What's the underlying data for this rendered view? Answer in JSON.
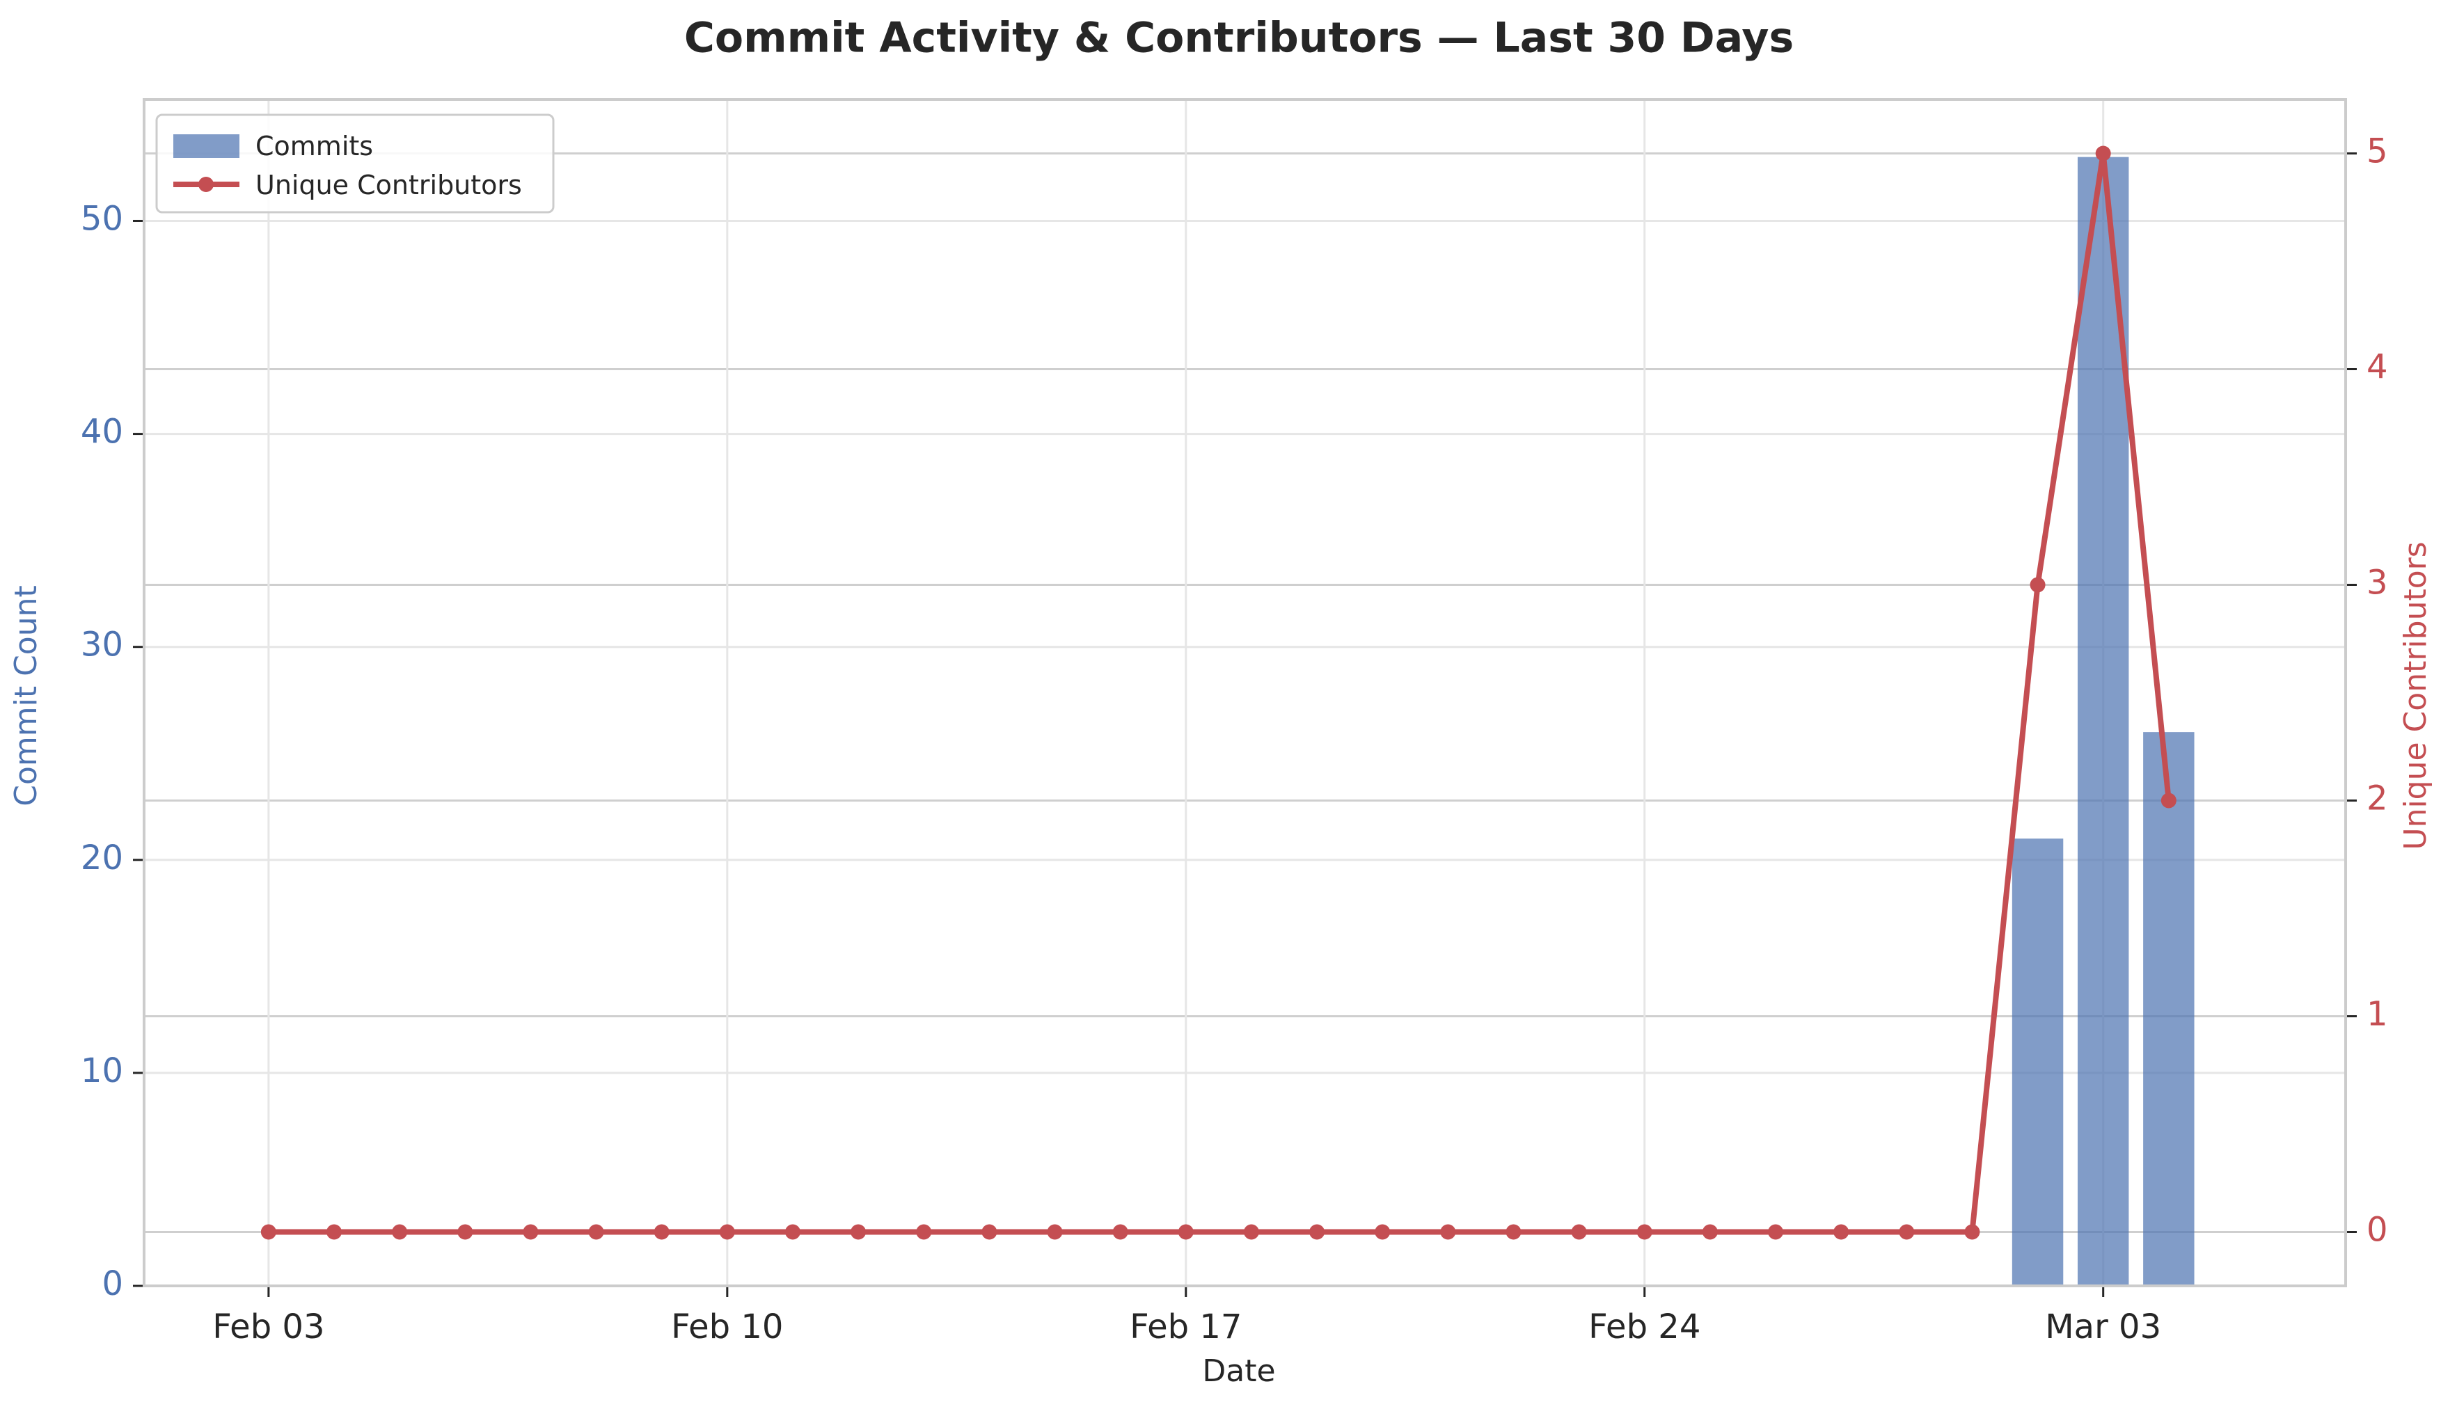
{
  "chart_data": {
    "type": "bar+line",
    "title": "Commit Activity & Contributors — Last 30 Days",
    "xlabel": "Date",
    "ylabel_left": "Commit Count",
    "ylabel_right": "Unique Contributors",
    "x_ticks": [
      "Feb 03",
      "Feb 10",
      "Feb 17",
      "Feb 24",
      "Mar 03"
    ],
    "x_start": "2025-02-03",
    "x_end": "2025-03-05",
    "ylim_left": [
      0,
      55.7
    ],
    "yticks_left": [
      0,
      10,
      20,
      30,
      40,
      50
    ],
    "ylim_right": [
      -0.25,
      5.25
    ],
    "yticks_right": [
      0,
      1,
      2,
      3,
      4,
      5
    ],
    "grid": true,
    "legend_position": "upper-left",
    "colors": {
      "commits": "#4c72b0",
      "contributors": "#c44e52",
      "grid": "#e6e6e6",
      "frame": "#cccccc",
      "text": "#262626"
    },
    "series": [
      {
        "name": "Commits",
        "kind": "bar",
        "axis": "left",
        "points": [
          {
            "date": "2025-03-02",
            "value": 21
          },
          {
            "date": "2025-03-03",
            "value": 53
          },
          {
            "date": "2025-03-04",
            "value": 26
          }
        ]
      },
      {
        "name": "Unique Contributors",
        "kind": "line",
        "axis": "right",
        "points": [
          {
            "date": "2025-02-03",
            "value": 0
          },
          {
            "date": "2025-02-04",
            "value": 0
          },
          {
            "date": "2025-02-05",
            "value": 0
          },
          {
            "date": "2025-02-06",
            "value": 0
          },
          {
            "date": "2025-02-07",
            "value": 0
          },
          {
            "date": "2025-02-08",
            "value": 0
          },
          {
            "date": "2025-02-09",
            "value": 0
          },
          {
            "date": "2025-02-10",
            "value": 0
          },
          {
            "date": "2025-02-11",
            "value": 0
          },
          {
            "date": "2025-02-12",
            "value": 0
          },
          {
            "date": "2025-02-13",
            "value": 0
          },
          {
            "date": "2025-02-14",
            "value": 0
          },
          {
            "date": "2025-02-15",
            "value": 0
          },
          {
            "date": "2025-02-16",
            "value": 0
          },
          {
            "date": "2025-02-17",
            "value": 0
          },
          {
            "date": "2025-02-18",
            "value": 0
          },
          {
            "date": "2025-02-19",
            "value": 0
          },
          {
            "date": "2025-02-20",
            "value": 0
          },
          {
            "date": "2025-02-21",
            "value": 0
          },
          {
            "date": "2025-02-22",
            "value": 0
          },
          {
            "date": "2025-02-23",
            "value": 0
          },
          {
            "date": "2025-02-24",
            "value": 0
          },
          {
            "date": "2025-02-25",
            "value": 0
          },
          {
            "date": "2025-02-26",
            "value": 0
          },
          {
            "date": "2025-02-27",
            "value": 0
          },
          {
            "date": "2025-02-28",
            "value": 0
          },
          {
            "date": "2025-03-01",
            "value": 0
          },
          {
            "date": "2025-03-02",
            "value": 3
          },
          {
            "date": "2025-03-03",
            "value": 5
          },
          {
            "date": "2025-03-04",
            "value": 2
          }
        ]
      }
    ]
  }
}
